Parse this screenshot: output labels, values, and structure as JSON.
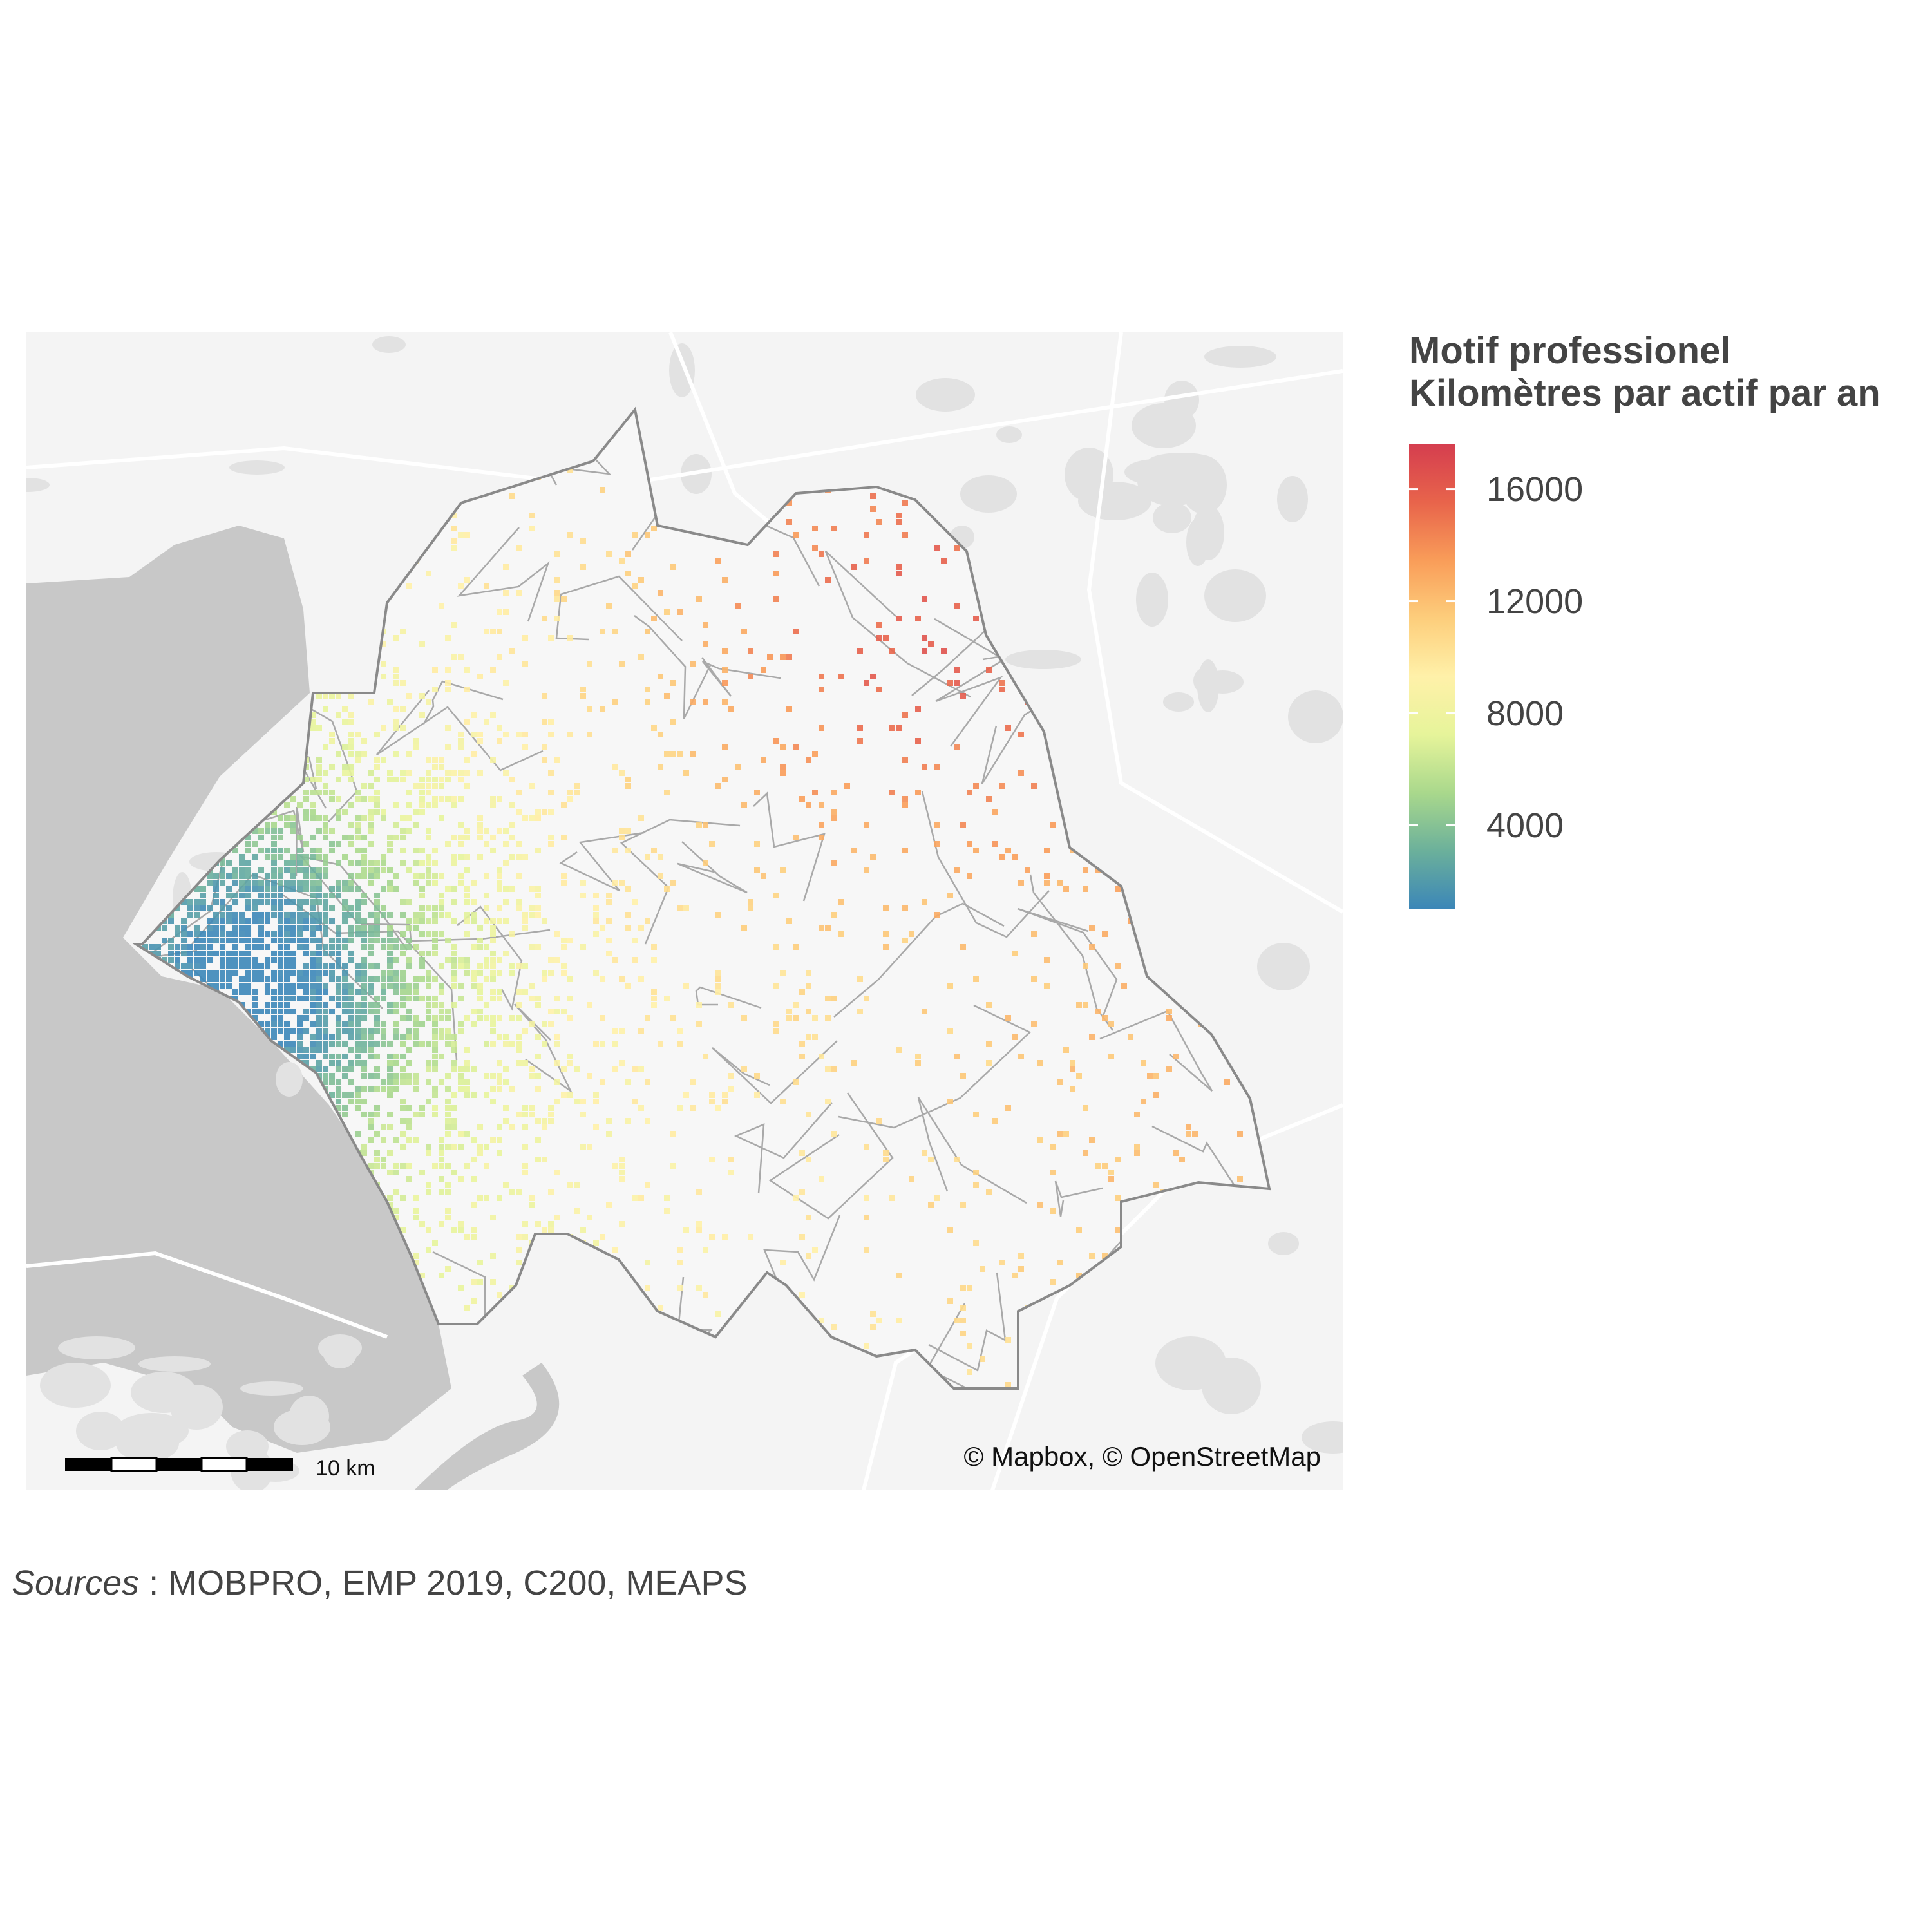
{
  "map": {
    "attribution": "© Mapbox, © OpenStreetMap",
    "scalebar_label": "10 km",
    "colors": {
      "land": "#f4f4f4",
      "water": "#c8c8c8",
      "roads": "#ffffff",
      "urban": "#e2e2e2",
      "boundary": "#8a8a8a",
      "commune_lines": "#a9a9a9"
    }
  },
  "legend": {
    "title_line1": "Motif professionel",
    "title_line2": "Kilomètres par actif par an",
    "ticks": [
      "16000",
      "12000",
      "8000",
      "4000"
    ],
    "tick_values": [
      16000,
      12000,
      8000,
      4000
    ],
    "range": [
      1000,
      17600
    ],
    "palette": [
      "#3b86b8",
      "#6bb09b",
      "#a9d88c",
      "#e6f49a",
      "#fff1a9",
      "#fdce7c",
      "#f99d59",
      "#e8644b",
      "#d53e4f"
    ]
  },
  "caption": {
    "label": "Sources",
    "text": " : MOBPRO, EMP 2019, C200, MEAPS"
  }
}
